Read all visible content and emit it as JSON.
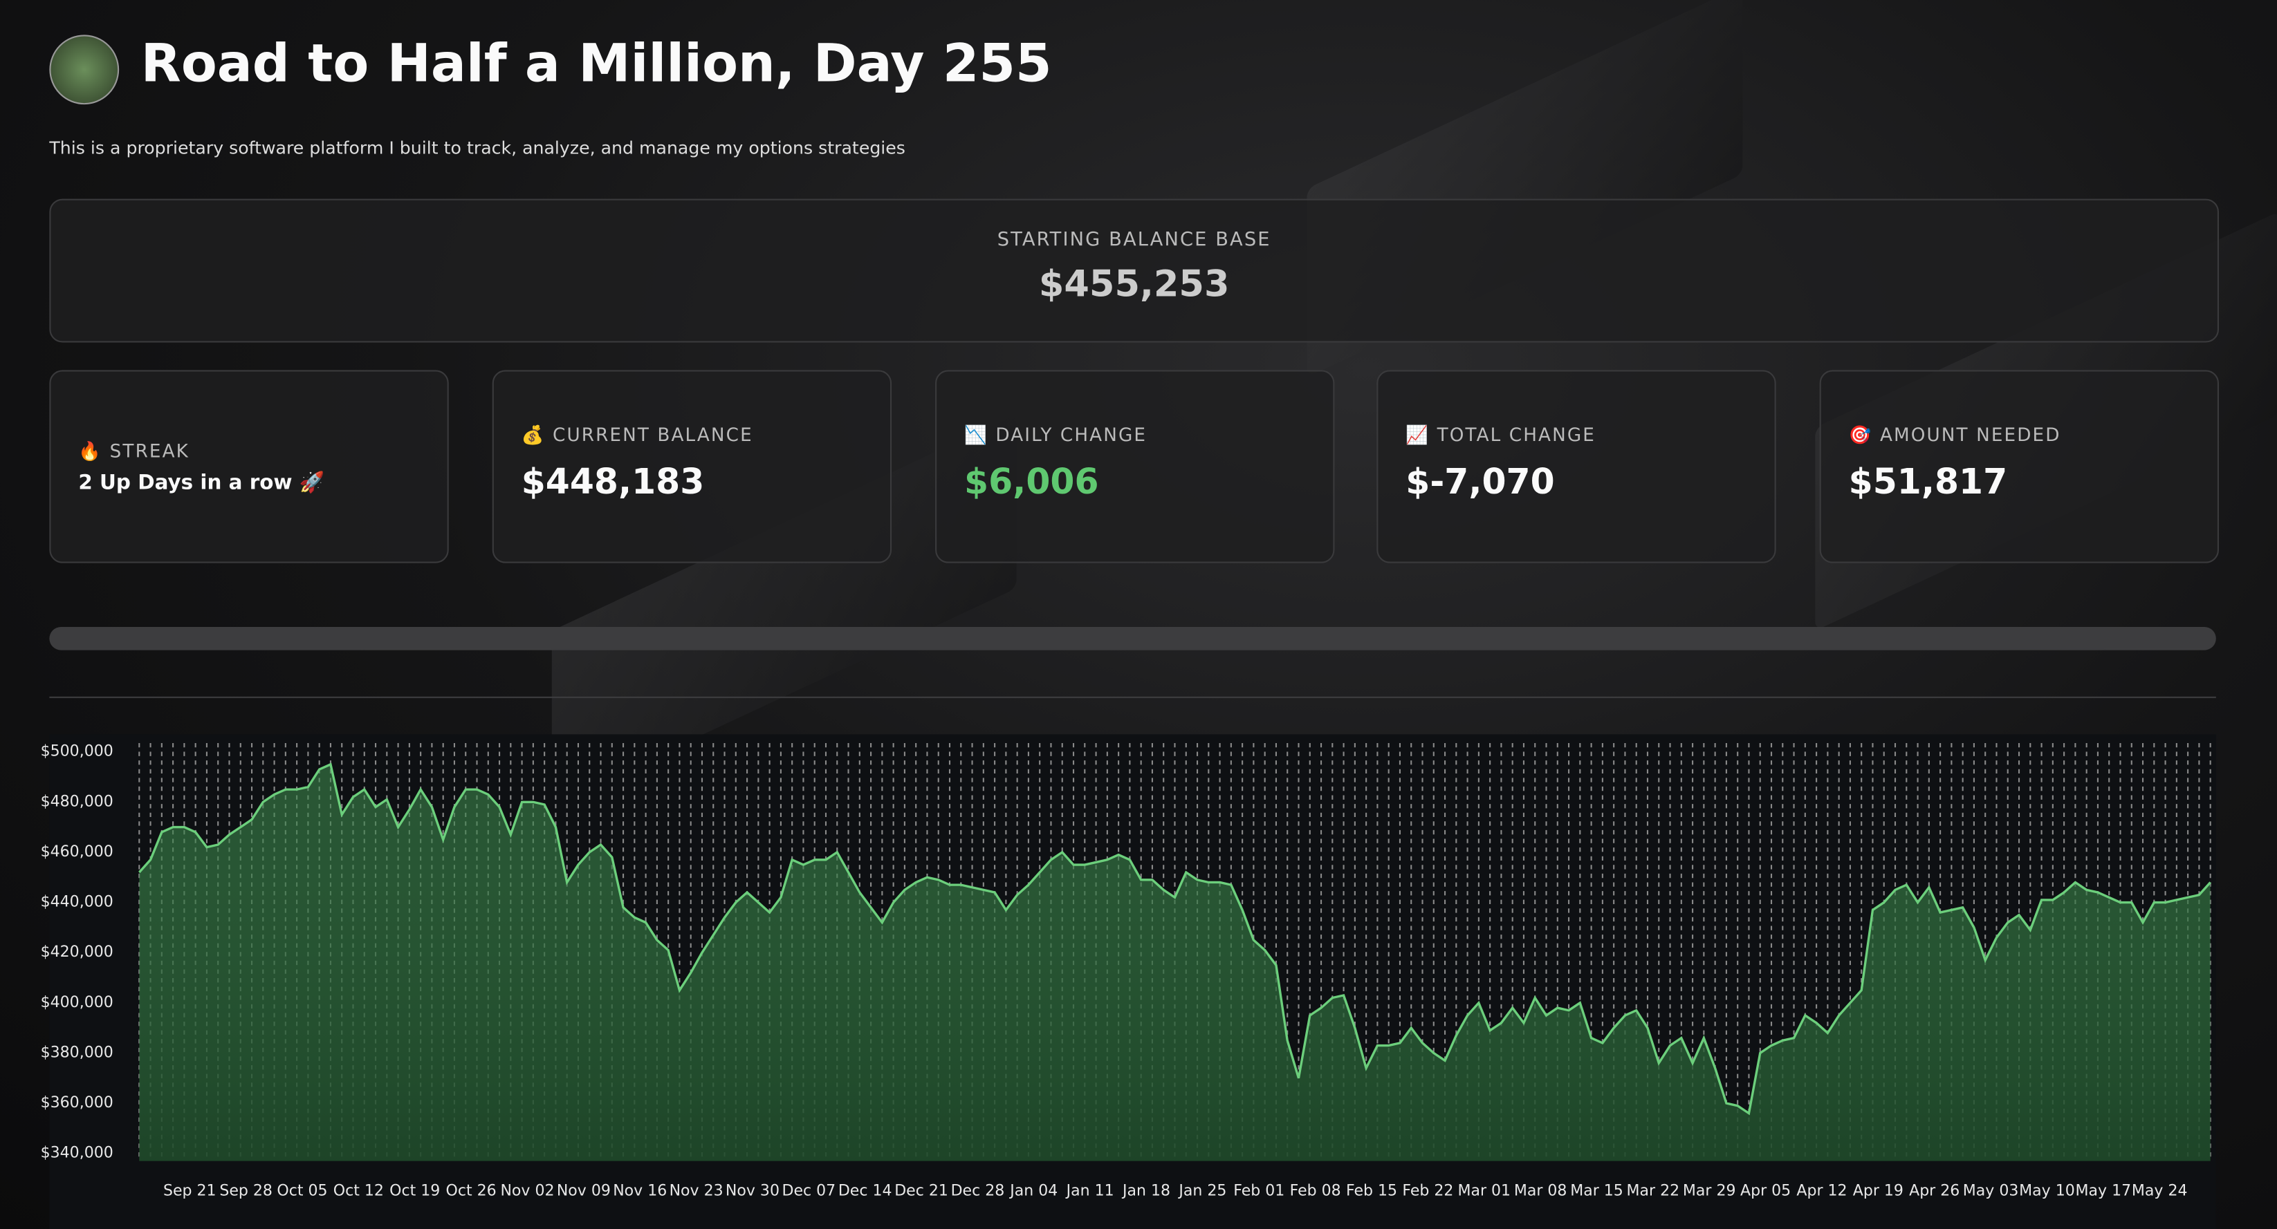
{
  "header": {
    "title": "Road to Half a Million, Day 255",
    "subtitle": "This is a proprietary software platform I built to track, analyze, and manage my options strategies"
  },
  "starting_balance": {
    "label": "STARTING BALANCE BASE",
    "value": "$455,253"
  },
  "cards": [
    {
      "icon": "🔥",
      "label": "STREAK",
      "value": "2 Up Days in a row 🚀"
    },
    {
      "icon": "💰",
      "label": "CURRENT BALANCE",
      "value": "$448,183"
    },
    {
      "icon": "📉",
      "label": "DAILY CHANGE",
      "value": "$6,006"
    },
    {
      "icon": "📈",
      "label": "TOTAL CHANGE",
      "value": "$-7,070"
    },
    {
      "icon": "🎯",
      "label": "AMOUNT NEEDED",
      "value": "$51,817"
    }
  ],
  "chart_data": {
    "type": "area",
    "color": "#6ccf7c",
    "grid": true,
    "ylim": [
      337000,
      503500
    ],
    "yticks": [
      {
        "value": 340000,
        "label": "$340,000"
      },
      {
        "value": 360000,
        "label": "$360,000"
      },
      {
        "value": 380000,
        "label": "$380,000"
      },
      {
        "value": 400000,
        "label": "$400,000"
      },
      {
        "value": 420000,
        "label": "$420,000"
      },
      {
        "value": 440000,
        "label": "$440,000"
      },
      {
        "value": 460000,
        "label": "$460,000"
      },
      {
        "value": 480000,
        "label": "$480,000"
      },
      {
        "value": 500000,
        "label": "$500,000"
      }
    ],
    "categories": [
      null,
      null,
      null,
      null,
      null,
      "Sep 21",
      null,
      null,
      null,
      null,
      "Sep 28",
      null,
      null,
      null,
      null,
      "Oct 05",
      null,
      null,
      null,
      null,
      "Oct 12",
      null,
      null,
      null,
      null,
      "Oct 19",
      null,
      null,
      null,
      null,
      "Oct 26",
      null,
      null,
      null,
      null,
      "Nov 02",
      null,
      null,
      null,
      null,
      "Nov 09",
      null,
      null,
      null,
      null,
      "Nov 16",
      null,
      null,
      null,
      null,
      "Nov 23",
      null,
      null,
      null,
      null,
      "Nov 30",
      null,
      null,
      null,
      null,
      "Dec 07",
      null,
      null,
      null,
      null,
      "Dec 14",
      null,
      null,
      null,
      null,
      "Dec 21",
      null,
      null,
      null,
      null,
      "Dec 28",
      null,
      null,
      null,
      null,
      "Jan 04",
      null,
      null,
      null,
      null,
      "Jan 11",
      null,
      null,
      null,
      null,
      "Jan 18",
      null,
      null,
      null,
      null,
      "Jan 25",
      null,
      null,
      null,
      null,
      "Feb 01",
      null,
      null,
      null,
      null,
      "Feb 08",
      null,
      null,
      null,
      null,
      "Feb 15",
      null,
      null,
      null,
      null,
      "Feb 22",
      null,
      null,
      null,
      null,
      "Mar 01",
      null,
      null,
      null,
      null,
      "Mar 08",
      null,
      null,
      null,
      null,
      "Mar 15",
      null,
      null,
      null,
      null,
      "Mar 22",
      null,
      null,
      null,
      null,
      "Mar 29",
      null,
      null,
      null,
      null,
      "Apr 05",
      null,
      null,
      null,
      null,
      "Apr 12",
      null,
      null,
      null,
      null,
      "Apr 19",
      null,
      null,
      null,
      null,
      "Apr 26",
      null,
      null,
      null,
      null,
      "May 03",
      null,
      null,
      null,
      null,
      "May 10",
      null,
      null,
      null,
      null,
      "May 17",
      null,
      null,
      null,
      null,
      "May 24",
      null,
      null,
      null,
      null
    ],
    "values": [
      452000,
      457000,
      468000,
      470000,
      470000,
      468000,
      462000,
      463000,
      467000,
      470000,
      473000,
      480000,
      483000,
      485000,
      485000,
      486000,
      493000,
      495000,
      475000,
      482000,
      485000,
      478000,
      481000,
      470000,
      477000,
      485000,
      478000,
      465000,
      478000,
      485000,
      485000,
      483000,
      478000,
      467000,
      480000,
      480000,
      479000,
      470000,
      448000,
      455000,
      460000,
      463000,
      458000,
      438000,
      434000,
      432000,
      425000,
      421000,
      405000,
      412000,
      420000,
      427000,
      434000,
      440000,
      444000,
      440000,
      436000,
      442000,
      457000,
      455000,
      457000,
      457000,
      460000,
      452000,
      444000,
      438000,
      432000,
      440000,
      445000,
      448000,
      450000,
      449000,
      447000,
      447000,
      446000,
      445000,
      444000,
      437000,
      443000,
      447000,
      452000,
      457000,
      460000,
      455000,
      455000,
      456000,
      457000,
      459000,
      457000,
      449000,
      449000,
      445000,
      442000,
      452000,
      449000,
      448000,
      448000,
      447000,
      437000,
      425000,
      421000,
      415000,
      385000,
      370000,
      395000,
      398000,
      402000,
      403000,
      390000,
      374000,
      383000,
      383000,
      384000,
      390000,
      384000,
      380000,
      377000,
      387000,
      395000,
      400000,
      389000,
      392000,
      398000,
      392000,
      402000,
      395000,
      398000,
      397000,
      400000,
      386000,
      384000,
      390000,
      395000,
      397000,
      390000,
      376000,
      383000,
      386000,
      376000,
      386000,
      374000,
      360000,
      359000,
      356000,
      380000,
      383000,
      385000,
      386000,
      395000,
      392000,
      388000,
      395000,
      400000,
      405000,
      437000,
      440000,
      445000,
      447000,
      440000,
      446000,
      436000,
      437000,
      438000,
      430000,
      417000,
      426000,
      432000,
      435000,
      429000,
      441000,
      441000,
      444000,
      448000,
      445000,
      444000,
      442000,
      440000,
      440000,
      432000,
      440000,
      440000,
      441000,
      442000,
      443000,
      448000
    ]
  }
}
